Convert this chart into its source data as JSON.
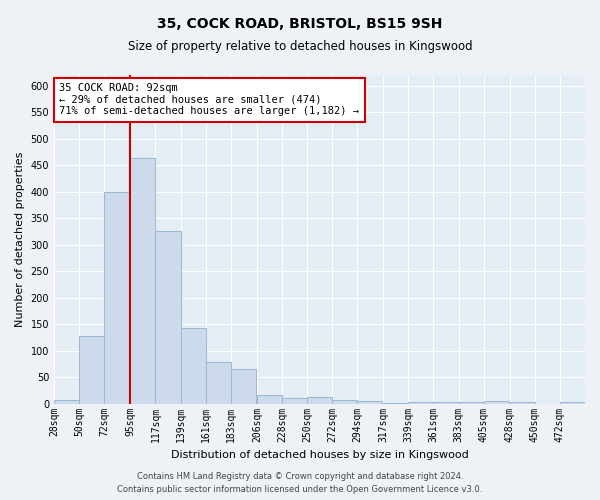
{
  "title1": "35, COCK ROAD, BRISTOL, BS15 9SH",
  "title2": "Size of property relative to detached houses in Kingswood",
  "xlabel": "Distribution of detached houses by size in Kingswood",
  "ylabel": "Number of detached properties",
  "footer1": "Contains HM Land Registry data © Crown copyright and database right 2024.",
  "footer2": "Contains public sector information licensed under the Open Government Licence v3.0.",
  "annotation_line1": "35 COCK ROAD: 92sqm",
  "annotation_line2": "← 29% of detached houses are smaller (474)",
  "annotation_line3": "71% of semi-detached houses are larger (1,182) →",
  "bar_color": "#ccdaeb",
  "bar_edge_color": "#9ab8d4",
  "ref_line_color": "#cc0000",
  "ref_line_x": 95,
  "bins": [
    28,
    50,
    72,
    95,
    117,
    139,
    161,
    183,
    206,
    228,
    250,
    272,
    294,
    317,
    339,
    361,
    383,
    405,
    428,
    450,
    472
  ],
  "bin_labels": [
    "28sqm",
    "50sqm",
    "72sqm",
    "95sqm",
    "117sqm",
    "139sqm",
    "161sqm",
    "183sqm",
    "206sqm",
    "228sqm",
    "250sqm",
    "272sqm",
    "294sqm",
    "317sqm",
    "339sqm",
    "361sqm",
    "383sqm",
    "405sqm",
    "428sqm",
    "450sqm",
    "472sqm"
  ],
  "values": [
    7,
    127,
    400,
    463,
    325,
    143,
    78,
    65,
    17,
    10,
    13,
    7,
    5,
    2,
    4,
    3,
    3,
    5,
    3,
    0,
    3
  ],
  "ylim": [
    0,
    620
  ],
  "yticks": [
    0,
    50,
    100,
    150,
    200,
    250,
    300,
    350,
    400,
    450,
    500,
    550,
    600
  ],
  "background_color": "#eef2f7",
  "plot_bg_color": "#e4ecf4",
  "grid_color": "#ffffff",
  "title1_fontsize": 10,
  "title2_fontsize": 8.5,
  "xlabel_fontsize": 8,
  "ylabel_fontsize": 8,
  "footer_fontsize": 6,
  "tick_fontsize": 7,
  "annot_fontsize": 7.5
}
